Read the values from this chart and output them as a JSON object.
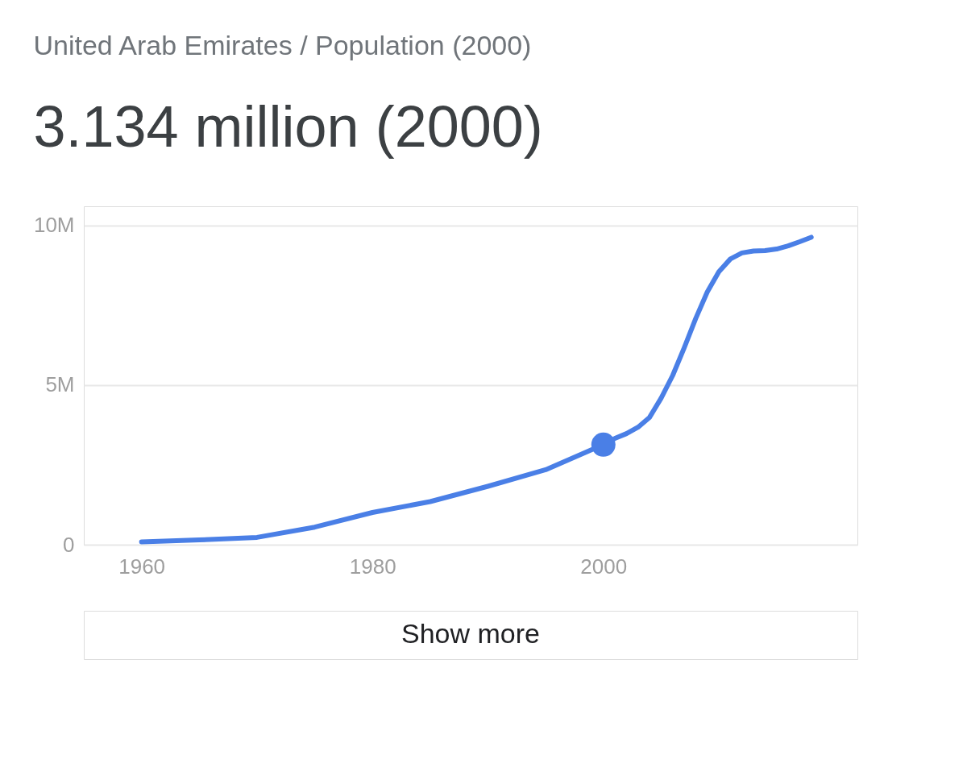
{
  "chart_data": {
    "type": "line",
    "title": "United Arab Emirates / Population (2000)",
    "subtitle": "3.134 million (2000)",
    "xlim": [
      1955,
      2022
    ],
    "xticks": [
      1960,
      1980,
      2000
    ],
    "ylim": [
      0,
      10.6
    ],
    "yticks": [
      {
        "value": 0,
        "label": "0"
      },
      {
        "value": 5,
        "label": "5M"
      },
      {
        "value": 10,
        "label": "10M"
      }
    ],
    "grid": "y",
    "line_style": "solid",
    "series": [
      {
        "color": "#4a7fe6",
        "x": [
          1960,
          1965,
          1970,
          1975,
          1980,
          1985,
          1990,
          1995,
          2000,
          2001,
          2002,
          2003,
          2004,
          2005,
          2006,
          2007,
          2008,
          2009,
          2010,
          2011,
          2012,
          2013,
          2014,
          2015,
          2016,
          2017,
          2018
        ],
        "values": [
          0.09,
          0.15,
          0.23,
          0.55,
          1.01,
          1.35,
          1.83,
          2.35,
          3.134,
          3.33,
          3.48,
          3.68,
          3.99,
          4.59,
          5.3,
          6.17,
          7.09,
          7.92,
          8.55,
          8.95,
          9.14,
          9.2,
          9.21,
          9.26,
          9.36,
          9.49,
          9.63
        ]
      },
      {
        "type": "scatter",
        "marker": "circle",
        "color": "#4a7fe6",
        "x": [
          2000
        ],
        "values": [
          3.134
        ]
      }
    ],
    "annotations": [
      "Show more"
    ]
  }
}
